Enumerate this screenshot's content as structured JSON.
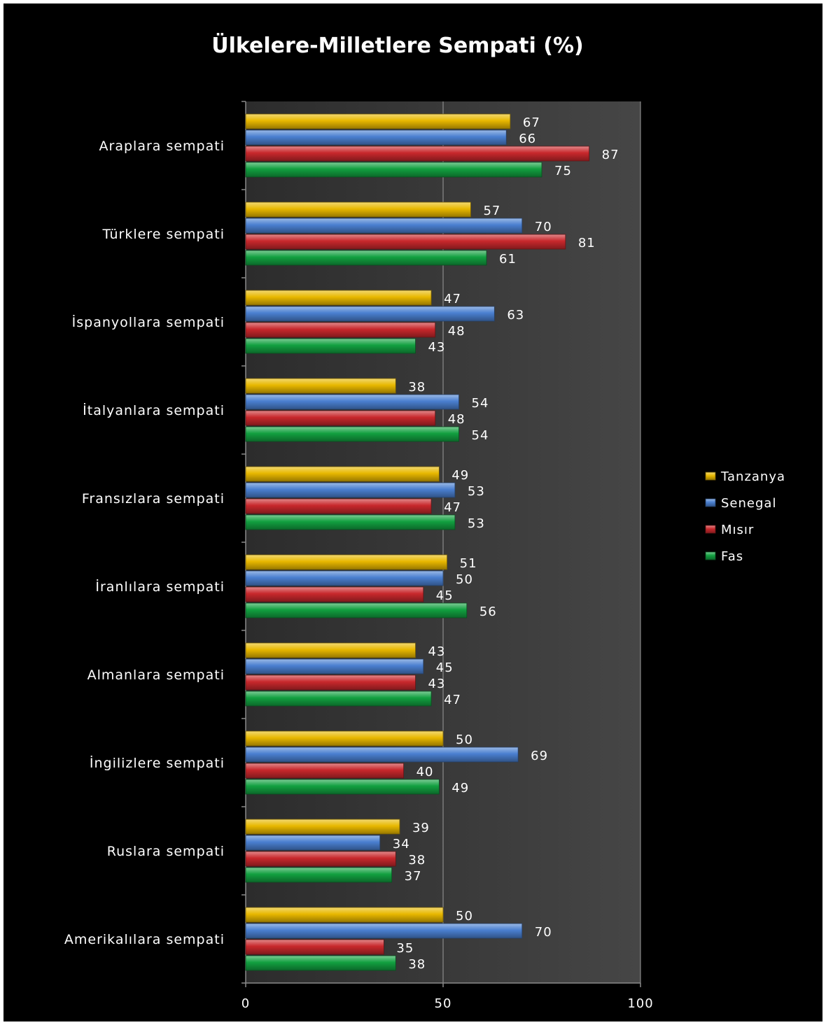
{
  "chart_data": {
    "type": "bar",
    "orientation": "horizontal",
    "title": "Ülkelere-Milletlere Sempati (%)",
    "categories": [
      "Araplara sempati",
      "Türklere sempati",
      "İspanyollara sempati",
      "İtalyanlara sempati",
      "Fransızlara sempati",
      "İranlılara sempati",
      "Almanlara sempati",
      "İngilizlere sempati",
      "Ruslara sempati",
      "Amerikalılara sempati"
    ],
    "series": [
      {
        "name": "Tanzanya",
        "color": "#e8b800",
        "values": [
          67,
          57,
          47,
          38,
          49,
          51,
          43,
          50,
          39,
          50
        ]
      },
      {
        "name": "Senegal",
        "color": "#4a7fd0",
        "values": [
          66,
          70,
          63,
          54,
          53,
          50,
          45,
          69,
          34,
          70
        ]
      },
      {
        "name": "Mısır",
        "color": "#c8282c",
        "values": [
          87,
          81,
          48,
          48,
          47,
          45,
          43,
          40,
          38,
          35
        ]
      },
      {
        "name": "Fas",
        "color": "#12a040",
        "values": [
          75,
          61,
          43,
          54,
          53,
          56,
          47,
          49,
          37,
          38
        ]
      }
    ],
    "xlim": [
      0,
      100
    ],
    "xticks": [
      "0",
      "50",
      "100"
    ],
    "grid": true,
    "legend_position": "right",
    "background": "#000000",
    "plot_background": "#3c3c3c"
  }
}
